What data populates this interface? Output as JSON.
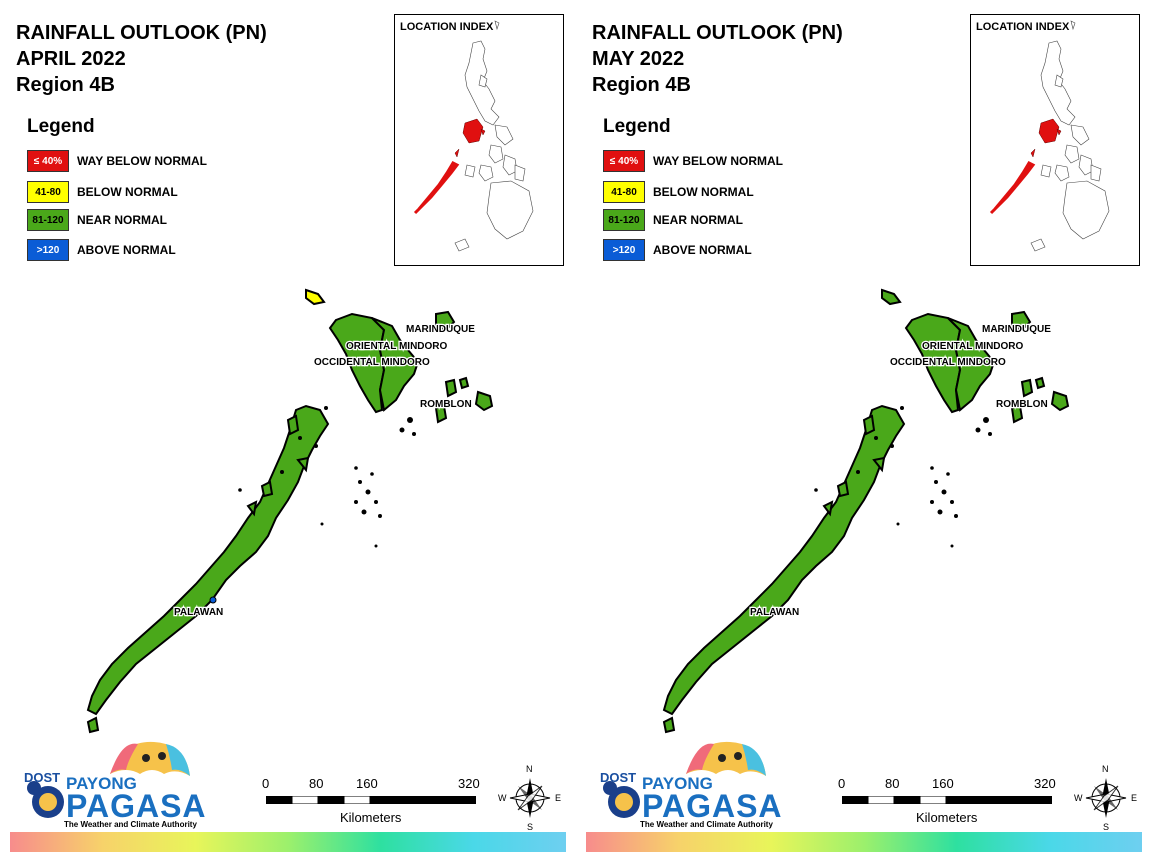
{
  "colors": {
    "way_below": "#e01010",
    "below": "#ffff00",
    "near": "#4aa81a",
    "above": "#0a5cd6"
  },
  "legend": {
    "title": "Legend",
    "items": [
      {
        "range": "≤ 40%",
        "label": "WAY BELOW NORMAL",
        "color": "#e01010",
        "text_color": "#ffffff"
      },
      {
        "range": "41-80",
        "label": "BELOW NORMAL",
        "color": "#ffff00",
        "text_color": "#000000"
      },
      {
        "range": "81-120",
        "label": "NEAR NORMAL",
        "color": "#4aa81a",
        "text_color": "#000000"
      },
      {
        "range": ">120",
        "label": "ABOVE NORMAL",
        "color": "#0a5cd6",
        "text_color": "#ffffff"
      }
    ]
  },
  "inset_title": "LOCATION INDEX",
  "province_labels": [
    "MARINDUQUE",
    "ORIENTAL MINDORO",
    "OCCIDENTAL MINDORO",
    "ROMBLON",
    "PALAWAN"
  ],
  "scale": {
    "ticks": [
      "0",
      "80",
      "160",
      "320"
    ],
    "unit": "Kilometers"
  },
  "compass": {
    "n": "N",
    "s": "S",
    "e": "E",
    "w": "W"
  },
  "logo": {
    "dost": "DOST",
    "payong": "PAYONG",
    "pagasa": "PAGASA",
    "tagline": "The Weather and Climate Authority"
  },
  "panels": [
    {
      "title": "RAINFALL OUTLOOK (PN)",
      "month": "APRIL 2022",
      "region": "Region 4B",
      "has_yellow_islet": true
    },
    {
      "title": "RAINFALL OUTLOOK (PN)",
      "month": "MAY 2022",
      "region": "Region 4B",
      "has_yellow_islet": false
    }
  ]
}
